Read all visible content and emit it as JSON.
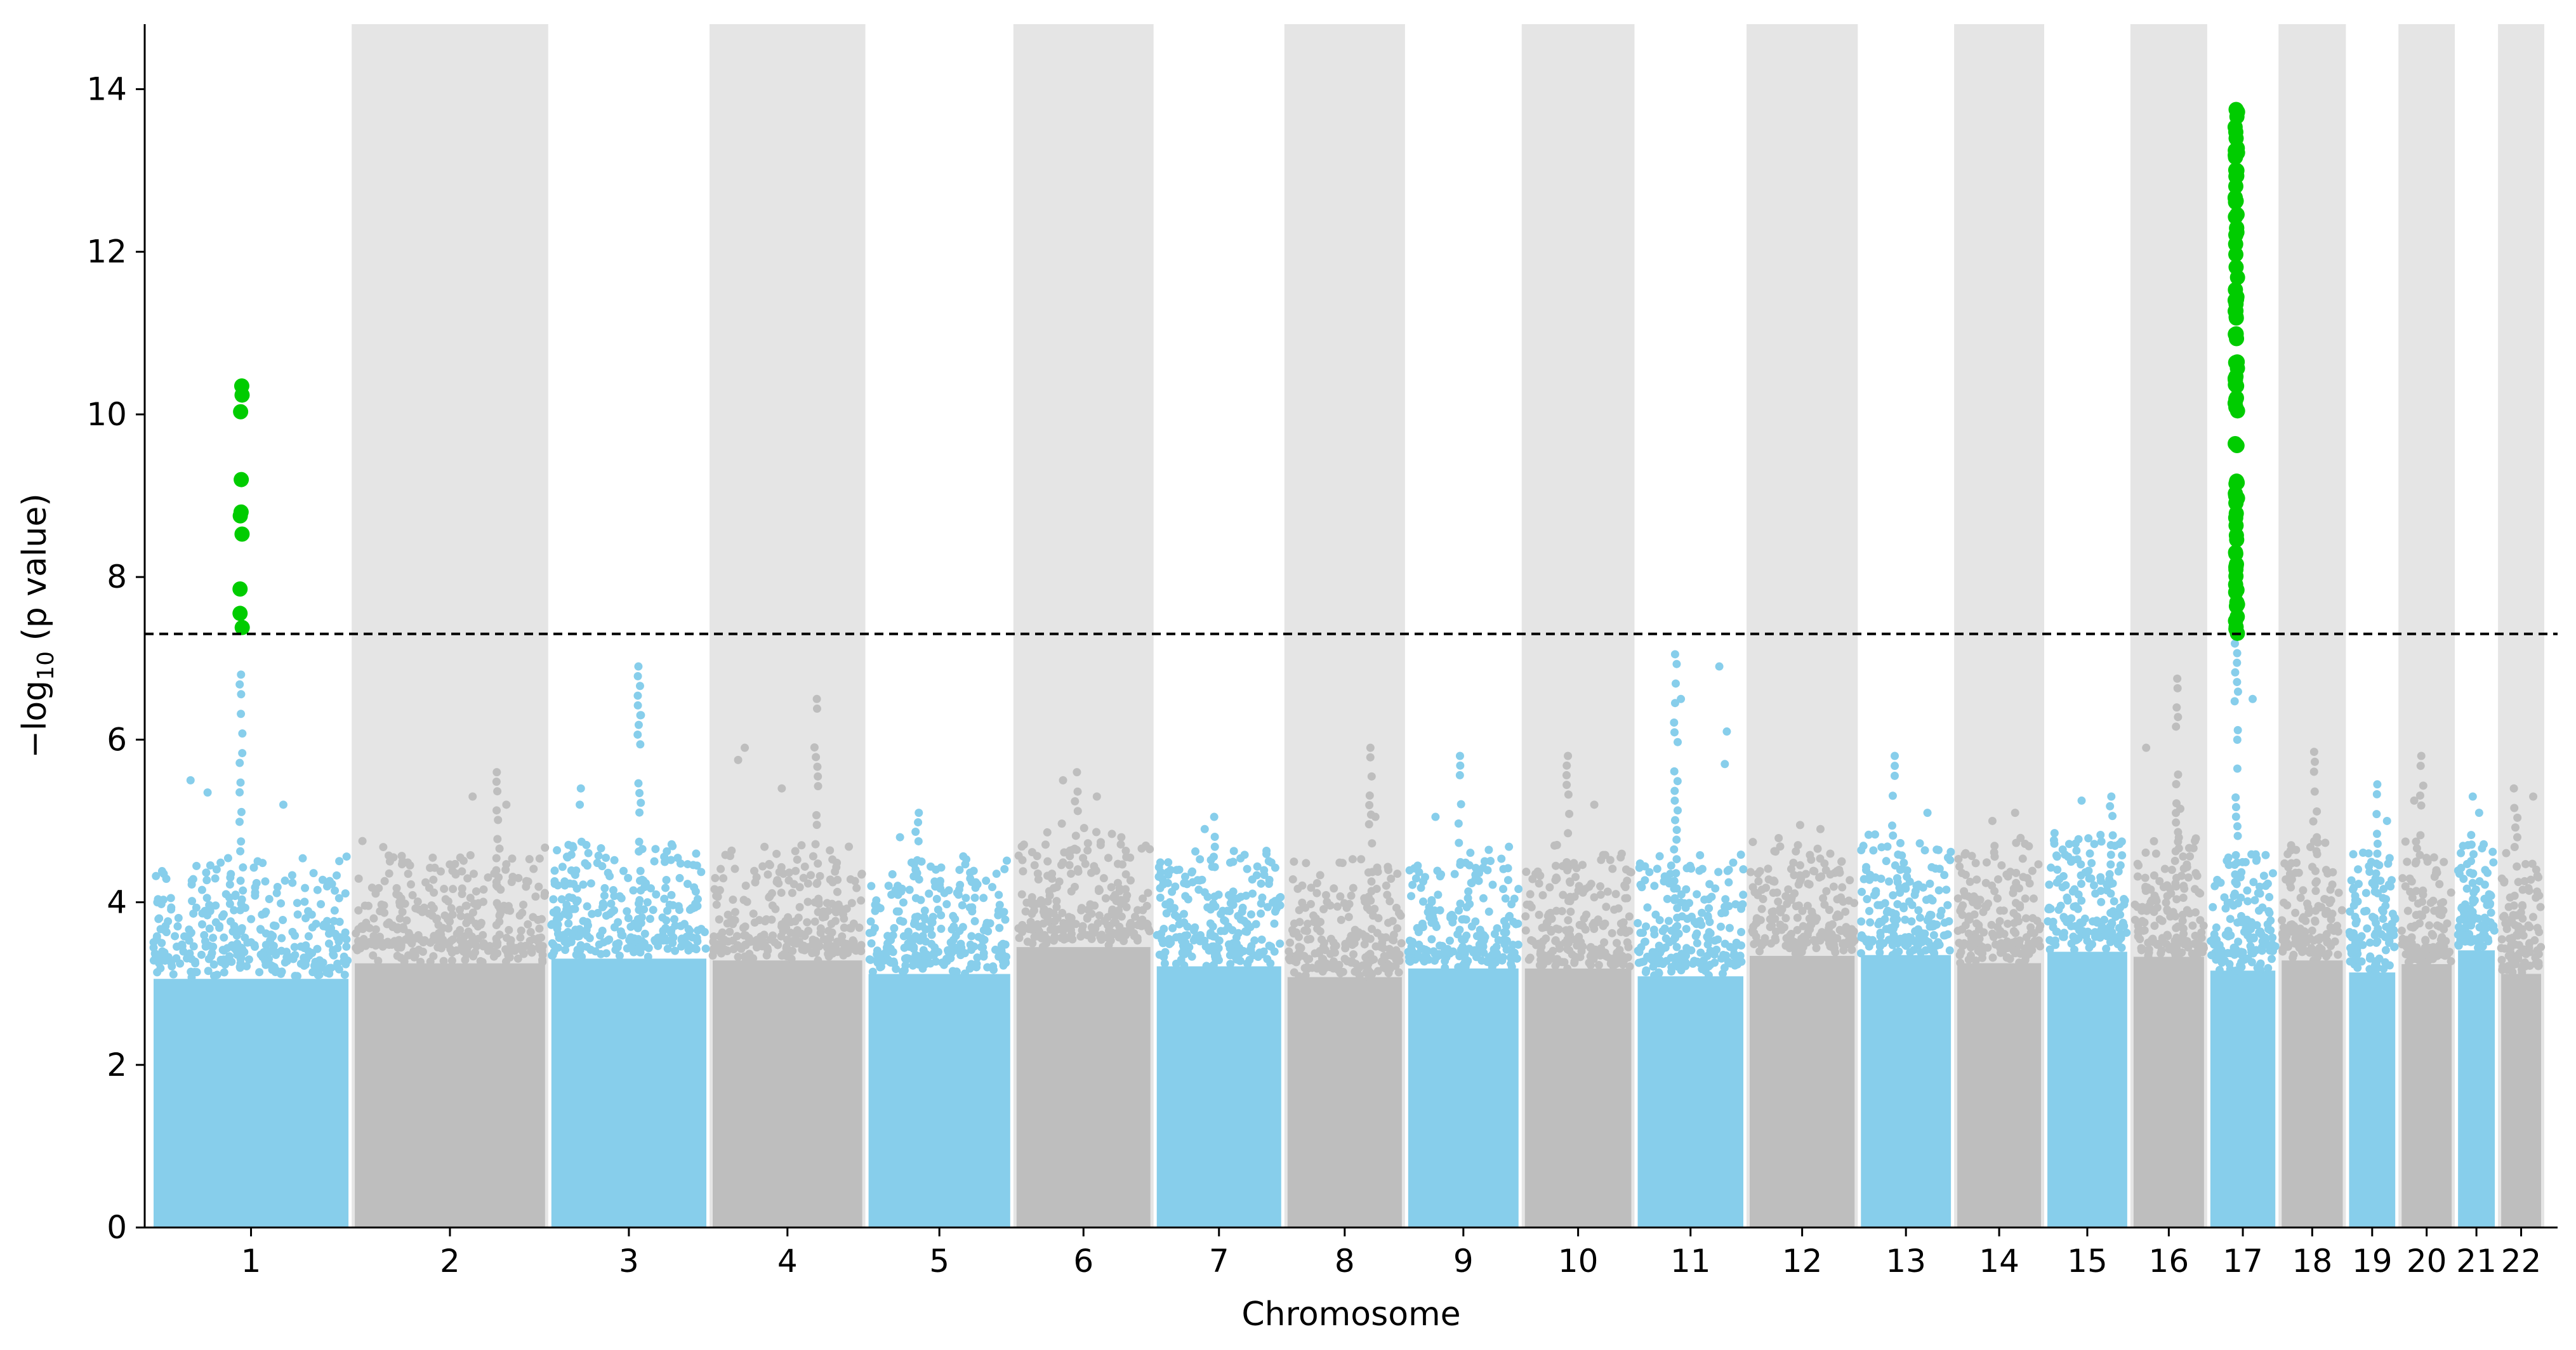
{
  "chart_data": {
    "type": "scatter",
    "subtype": "manhattan",
    "title": "",
    "xlabel": "Chromosome",
    "ylabel": "−log",
    "ylabel_subscript": "10",
    "ylabel_suffix": " (p value)",
    "ylim": [
      0,
      14.8
    ],
    "yticks": [
      0,
      2,
      4,
      6,
      8,
      10,
      12,
      14
    ],
    "significance_threshold": 7.3,
    "threshold_style": "dashed",
    "colors": {
      "odd_chromosome": "#87ceeb",
      "even_chromosome": "#bebebe",
      "significant": "#00cc00",
      "band": "#e5e5e5",
      "threshold_line": "#000000"
    },
    "shaded_bands": "even chromosomes",
    "chromosomes": [
      {
        "label": "1",
        "length": 249,
        "peak": 6.8,
        "sig_max": 10.35,
        "sig_pos": 0.45,
        "extra": [
          5.5,
          5.2,
          5.35
        ]
      },
      {
        "label": "2",
        "length": 243,
        "peak": 5.6,
        "extra": [
          5.3,
          5.2
        ]
      },
      {
        "label": "3",
        "length": 198,
        "peak": 6.9,
        "extra": [
          6.3,
          5.4,
          5.2
        ]
      },
      {
        "label": "4",
        "length": 191,
        "peak": 6.5,
        "extra": [
          5.75,
          5.9,
          5.4
        ]
      },
      {
        "label": "5",
        "length": 181,
        "peak": 5.1,
        "extra": [
          4.8
        ]
      },
      {
        "label": "6",
        "length": 171,
        "peak": 5.6,
        "extra": [
          5.5,
          5.3
        ]
      },
      {
        "label": "7",
        "length": 159,
        "peak": 5.05,
        "extra": [
          4.9
        ]
      },
      {
        "label": "8",
        "length": 146,
        "peak": 5.9,
        "extra": [
          5.05
        ]
      },
      {
        "label": "9",
        "length": 141,
        "peak": 5.8,
        "extra": [
          5.05
        ]
      },
      {
        "label": "10",
        "length": 136,
        "peak": 5.8,
        "extra": [
          5.2
        ]
      },
      {
        "label": "11",
        "length": 135,
        "peak": 7.05,
        "extra": [
          6.9,
          6.5,
          6.1,
          5.7
        ]
      },
      {
        "label": "12",
        "length": 134,
        "peak": 4.95,
        "extra": [
          4.9
        ]
      },
      {
        "label": "13",
        "length": 115,
        "peak": 5.8,
        "extra": [
          5.1
        ]
      },
      {
        "label": "14",
        "length": 107,
        "peak": 5.1,
        "extra": [
          5.0
        ]
      },
      {
        "label": "15",
        "length": 102,
        "peak": 5.3,
        "extra": [
          5.25
        ]
      },
      {
        "label": "16",
        "length": 90,
        "peak": 6.75,
        "extra": [
          5.9,
          5.15
        ]
      },
      {
        "label": "17",
        "length": 83,
        "peak": 7.3,
        "sig_max": 13.75,
        "sig_pos": 0.4,
        "extra": [
          6.5
        ]
      },
      {
        "label": "18",
        "length": 78,
        "peak": 5.85,
        "extra": [
          4.8
        ]
      },
      {
        "label": "19",
        "length": 59,
        "peak": 5.45,
        "extra": [
          5.0
        ]
      },
      {
        "label": "20",
        "length": 64,
        "peak": 5.8,
        "extra": [
          5.25
        ]
      },
      {
        "label": "21",
        "length": 47,
        "peak": 5.3,
        "extra": [
          5.1
        ]
      },
      {
        "label": "22",
        "length": 51,
        "peak": 5.4,
        "extra": [
          5.3
        ]
      }
    ]
  }
}
